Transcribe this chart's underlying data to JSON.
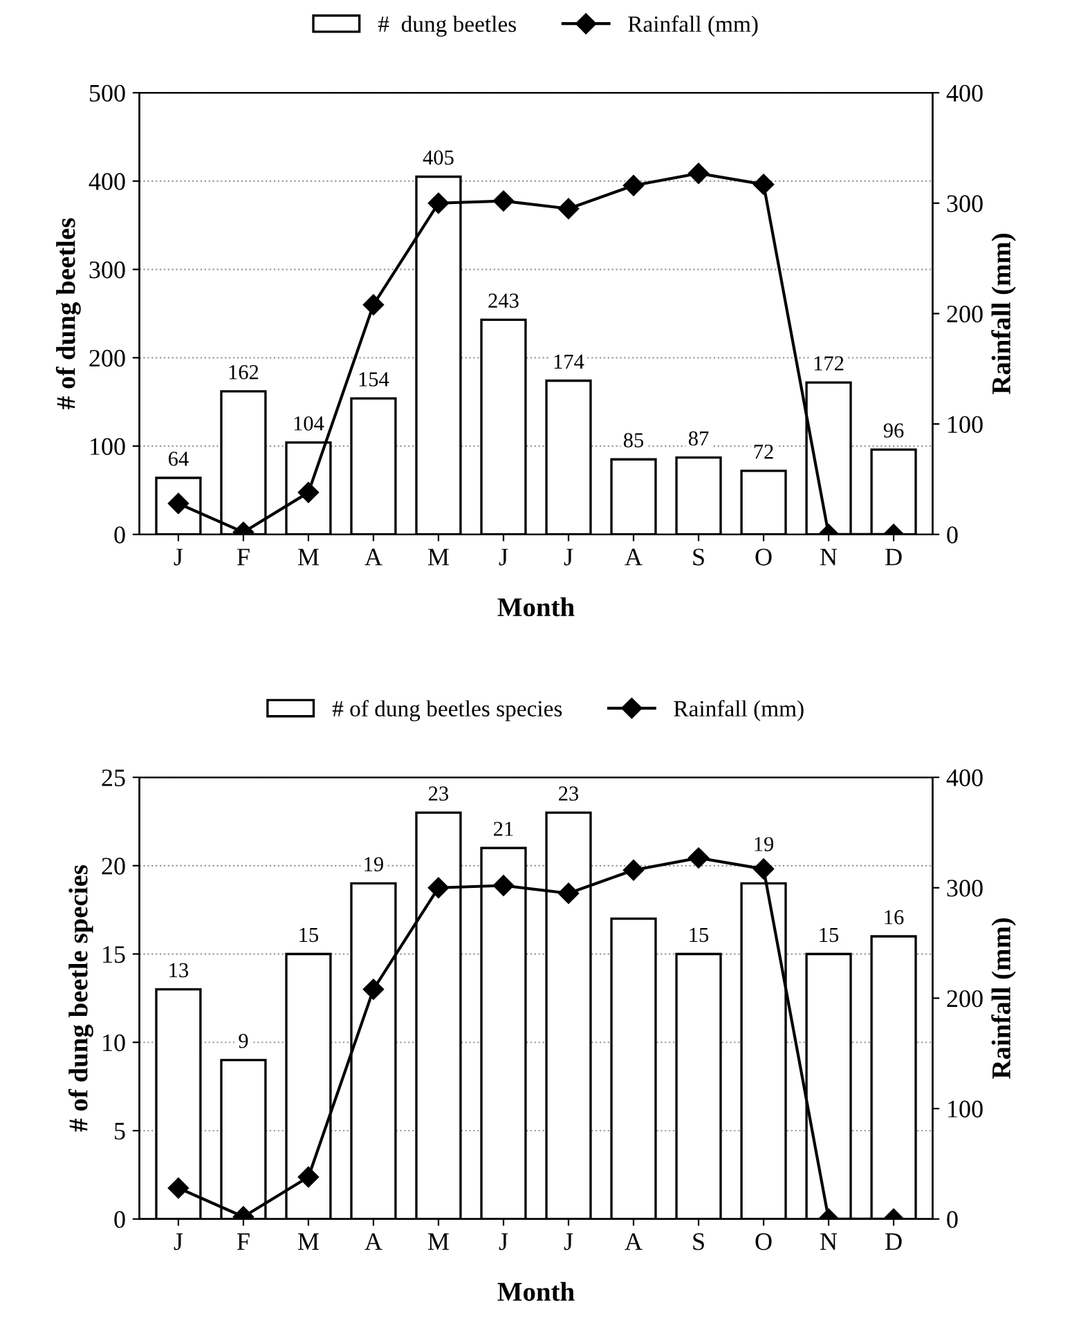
{
  "chart_data": [
    {
      "type": "bar",
      "categories": [
        "J",
        "F",
        "M",
        "A",
        "M",
        "J",
        "J",
        "A",
        "S",
        "O",
        "N",
        "D"
      ],
      "xlabel": "Month",
      "ylabel": "# of dung beetles",
      "y2label": "Rainfall (mm)",
      "series": [
        {
          "name": "#  dung beetles",
          "color": "#ffffff",
          "values": [
            64,
            162,
            104,
            154,
            405,
            243,
            174,
            85,
            87,
            72,
            172,
            96
          ],
          "value_labels": [
            "64",
            "162",
            "104",
            "154",
            "405",
            "243",
            "174",
            "85",
            "87",
            "72",
            "172",
            "96"
          ]
        },
        {
          "name": "Rainfall (mm)",
          "type": "line",
          "axis": "y2",
          "color": "#000000",
          "marker": "diamond",
          "values": [
            28,
            2,
            38,
            208,
            300,
            302,
            295,
            316,
            327,
            317,
            0,
            0
          ]
        }
      ],
      "ylim": [
        0,
        500
      ],
      "yticks": [
        0,
        100,
        200,
        300,
        400,
        500
      ],
      "y2lim": [
        0,
        400
      ],
      "y2ticks": [
        0,
        100,
        200,
        300,
        400
      ],
      "grid": "y",
      "legend": "top"
    },
    {
      "type": "bar",
      "categories": [
        "J",
        "F",
        "M",
        "A",
        "M",
        "J",
        "J",
        "A",
        "S",
        "O",
        "N",
        "D"
      ],
      "xlabel": "Month",
      "ylabel": "# of dung beetle species",
      "y2label": "Rainfall (mm)",
      "series": [
        {
          "name": "# of dung beetles species",
          "color": "#ffffff",
          "values": [
            13,
            9,
            15,
            19,
            23,
            21,
            23,
            17,
            15,
            19,
            15,
            16
          ],
          "value_labels": [
            "13",
            "9",
            "15",
            "19",
            "23",
            "21",
            "23",
            null,
            "15",
            "19",
            "15",
            "16"
          ]
        },
        {
          "name": "Rainfall (mm)",
          "type": "line",
          "axis": "y2",
          "color": "#000000",
          "marker": "diamond",
          "values": [
            28,
            2,
            38,
            208,
            300,
            302,
            295,
            316,
            327,
            317,
            0,
            0
          ]
        }
      ],
      "ylim": [
        0,
        25
      ],
      "yticks": [
        0,
        5,
        10,
        15,
        20,
        25
      ],
      "y2lim": [
        0,
        400
      ],
      "y2ticks": [
        0,
        100,
        200,
        300,
        400
      ],
      "grid": "y",
      "legend": "top"
    }
  ]
}
